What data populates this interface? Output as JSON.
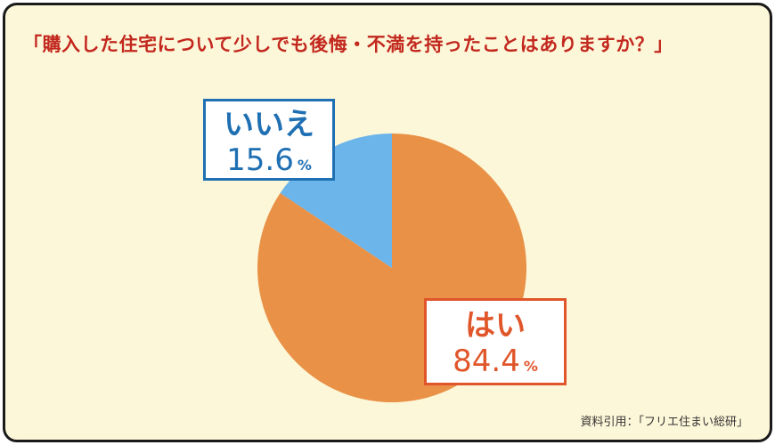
{
  "title": "「購入した住宅について少しでも後悔・不満を持ったことはありますか？」",
  "source": "資料引用：「フリエ住まい総研」",
  "chart_data": {
    "type": "pie",
    "title": "「購入した住宅について少しでも後悔・不満を持ったことはありますか？」",
    "slices": [
      {
        "label": "はい",
        "value": 84.4,
        "value_text": "84.4",
        "unit": "%",
        "color": "#e99147",
        "text_color": "#e0562a"
      },
      {
        "label": "いいえ",
        "value": 15.6,
        "value_text": "15.6",
        "unit": "%",
        "color": "#6cb5ea",
        "text_color": "#1f6fb3"
      }
    ]
  }
}
